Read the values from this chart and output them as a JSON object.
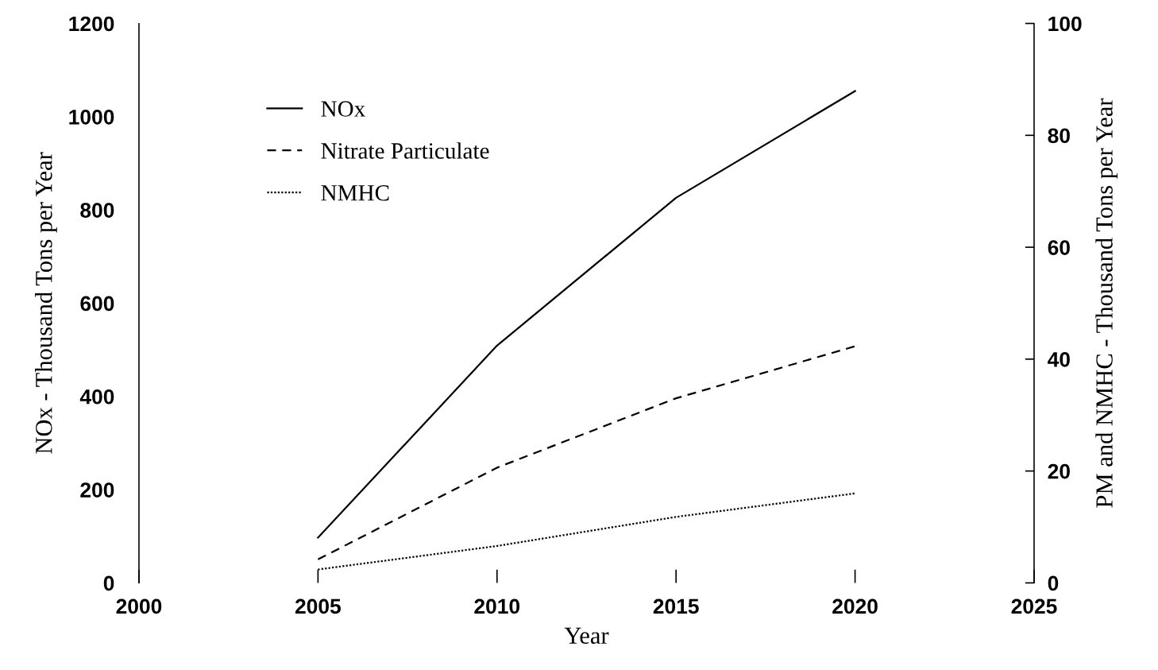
{
  "chart_data": {
    "type": "line",
    "xlabel": "Year",
    "ylabel": "NOx - Thousand Tons per Year",
    "y2label": "PM and NMHC - Thousand Tons per Year",
    "x": [
      2005,
      2010,
      2015,
      2020
    ],
    "series": [
      {
        "name": "NOx",
        "color": "#000000",
        "line_style": "solid",
        "values": [
          97,
          509,
          826,
          1055
        ]
      },
      {
        "name": "Nitrate Particulate",
        "color": "#000000",
        "line_style": "dashed",
        "axis": "y2",
        "values": [
          4.2,
          20.6,
          33,
          42.3
        ]
      },
      {
        "name": "NMHC",
        "color": "#000000",
        "line_style": "dotted",
        "axis": "y2",
        "values": [
          2.4,
          6.6,
          11.8,
          16
        ]
      }
    ],
    "xlim": [
      2000,
      2025
    ],
    "xticks": [
      2000,
      2005,
      2010,
      2015,
      2020,
      2025
    ],
    "ylim": [
      0,
      1200
    ],
    "yticks": [
      0,
      200,
      400,
      600,
      800,
      1000,
      1200
    ],
    "y2lim": [
      0,
      100
    ],
    "y2ticks": [
      0,
      20,
      40,
      60,
      80,
      100
    ],
    "grid": false,
    "legend": "top left",
    "marker": "none"
  }
}
